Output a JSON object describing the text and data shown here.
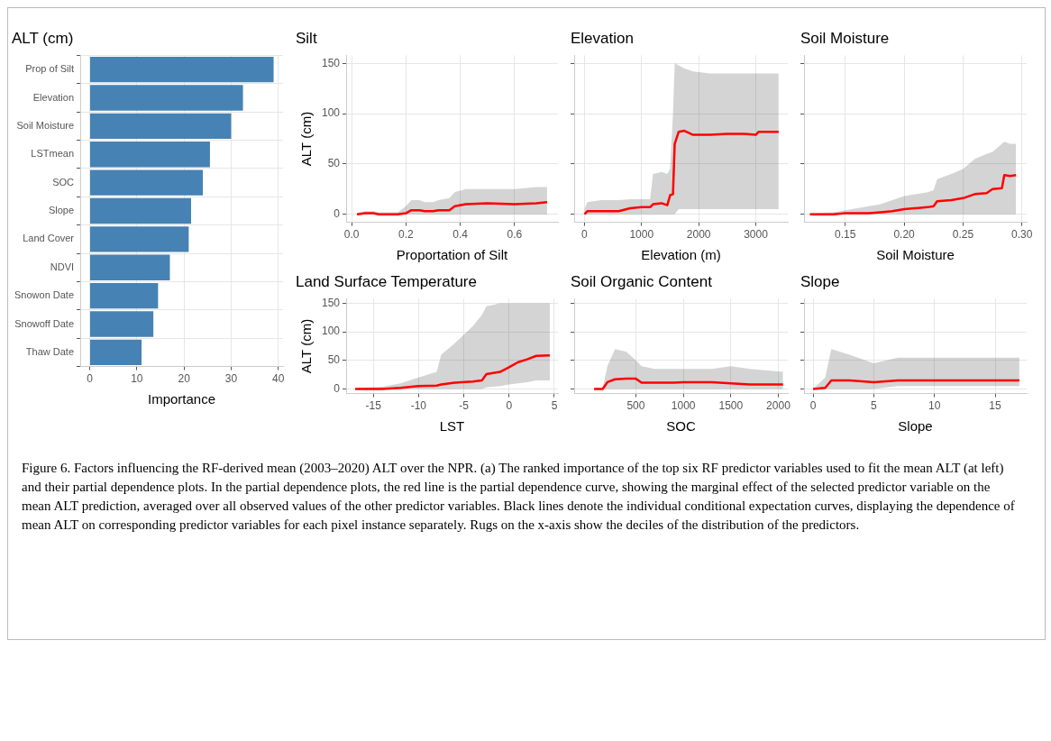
{
  "chart_data": [
    {
      "type": "bar",
      "orientation": "horizontal",
      "title": "ALT (cm)",
      "xlabel": "Importance",
      "categories": [
        "Prop of Silt",
        "Elevation",
        "Soil Moisture",
        "LSTmean",
        "SOC",
        "Slope",
        "Land Cover",
        "NDVI",
        "Snowon Date",
        "Snowoff Date",
        "Thaw Date"
      ],
      "values": [
        39,
        32.5,
        30,
        25.5,
        24,
        21.5,
        21,
        17,
        14.5,
        13.5,
        11
      ],
      "color": "#4682b4",
      "xlim": [
        -2,
        41
      ],
      "xticks": [
        0,
        10,
        20,
        30,
        40
      ],
      "grid": true,
      "legend": false,
      "annotations": [
        "Figure 6. Factors influencing the RF-derived mean (2003–2020) ALT over the NPR. (a) The ranked importance of the top six RF predictor variables used to fit the mean ALT (at left) and their partial dependence plots. In the partial dependence plots, the red line is the partial dependence curve, showing the marginal effect of the selected predictor variable on the mean ALT prediction, averaged over all observed values of the other predictor variables. Black lines denote the individual conditional expectation curves, displaying the dependence of mean ALT on corresponding predictor variables for each pixel instance separately. Rugs on the x-axis show the deciles of the distribution of the predictors."
      ]
    },
    {
      "type": "line",
      "title": "Silt",
      "xlabel": "Proportation of Silt",
      "ylabel": "ALT (cm)",
      "xlim": [
        -0.02,
        0.76
      ],
      "xticks": [
        {
          "value": 0,
          "label": "0.0"
        },
        {
          "value": 0.2,
          "label": "0.2"
        },
        {
          "value": 0.4,
          "label": "0.4"
        },
        {
          "value": 0.6,
          "label": "0.6"
        }
      ],
      "ylim": [
        -8,
        158
      ],
      "yticks": [
        0,
        50,
        100,
        150
      ],
      "grid": true,
      "legend": false,
      "series": [
        {
          "color": "#ff0000",
          "x": [
            0.02,
            0.05,
            0.08,
            0.1,
            0.17,
            0.2,
            0.22,
            0.25,
            0.27,
            0.3,
            0.32,
            0.36,
            0.38,
            0.42,
            0.5,
            0.6,
            0.68,
            0.72
          ],
          "values": [
            0,
            1,
            1,
            0,
            0,
            1,
            4,
            4,
            3,
            3,
            4,
            4,
            8,
            10,
            11,
            10,
            11,
            12
          ],
          "lower": [
            0,
            0,
            0,
            0,
            0,
            0,
            0,
            0,
            0,
            0,
            0,
            0,
            0,
            0,
            0,
            0,
            0,
            0
          ],
          "upper": [
            1,
            3,
            3,
            2,
            2,
            8,
            14,
            14,
            12,
            12,
            14,
            16,
            22,
            25,
            25,
            25,
            27,
            27
          ]
        }
      ]
    },
    {
      "type": "line",
      "title": "Elevation",
      "xlabel": "Elevation (m)",
      "xlim": [
        -180,
        3560
      ],
      "xticks": [
        0,
        1000,
        2000,
        3000
      ],
      "ylim": [
        -8,
        158
      ],
      "yticks": [
        0,
        50,
        100,
        150
      ],
      "tick_labels": "x",
      "grid": true,
      "legend": false,
      "series": [
        {
          "color": "#ff0000",
          "x": [
            0,
            50,
            300,
            600,
            800,
            1000,
            1150,
            1200,
            1350,
            1450,
            1500,
            1550,
            1580,
            1650,
            1750,
            1900,
            2200,
            2500,
            2800,
            3000,
            3050,
            3400
          ],
          "values": [
            0,
            3,
            3,
            3,
            6,
            7,
            7,
            10,
            11,
            9,
            19,
            20,
            70,
            82,
            83,
            79,
            79,
            80,
            80,
            79,
            82,
            82
          ],
          "lower": [
            0,
            0,
            0,
            0,
            0,
            0,
            0,
            0,
            0,
            0,
            0,
            0,
            0,
            5,
            5,
            5,
            5,
            5,
            5,
            5,
            5,
            5
          ],
          "upper": [
            5,
            12,
            14,
            14,
            15,
            15,
            15,
            40,
            42,
            40,
            45,
            100,
            150,
            148,
            145,
            142,
            140,
            140,
            140,
            140,
            140,
            140
          ]
        }
      ]
    },
    {
      "type": "line",
      "title": "Soil Moisture",
      "xlabel": "Soil Moisture",
      "xlim": [
        0.115,
        0.304
      ],
      "xticks": [
        {
          "value": 0.15,
          "label": "0.15"
        },
        {
          "value": 0.2,
          "label": "0.20"
        },
        {
          "value": 0.25,
          "label": "0.25"
        },
        {
          "value": 0.3,
          "label": "0.30"
        }
      ],
      "ylim": [
        -8,
        158
      ],
      "yticks": [
        0,
        50,
        100,
        150
      ],
      "tick_labels": "x",
      "grid": true,
      "legend": false,
      "series": [
        {
          "color": "#ff0000",
          "x": [
            0.12,
            0.14,
            0.15,
            0.17,
            0.18,
            0.19,
            0.2,
            0.22,
            0.225,
            0.228,
            0.24,
            0.25,
            0.26,
            0.27,
            0.275,
            0.283,
            0.285,
            0.29,
            0.295
          ],
          "values": [
            0,
            0,
            1,
            1,
            2,
            3,
            5,
            7,
            8,
            13,
            14,
            16,
            20,
            21,
            25,
            26,
            39,
            38,
            39
          ],
          "lower": [
            0,
            0,
            0,
            0,
            0,
            0,
            0,
            0,
            0,
            0,
            0,
            0,
            0,
            0,
            0,
            0,
            0,
            0,
            0
          ],
          "upper": [
            1,
            2,
            4,
            8,
            10,
            14,
            18,
            22,
            24,
            35,
            40,
            45,
            55,
            60,
            62,
            70,
            72,
            70,
            70
          ]
        }
      ]
    },
    {
      "type": "line",
      "title": "Land Surface Temperature",
      "xlabel": "LST",
      "ylabel": "ALT (cm)",
      "xlim": [
        -18,
        5.4
      ],
      "xticks": [
        -15,
        -10,
        -5,
        0,
        5
      ],
      "ylim": [
        -8,
        158
      ],
      "yticks": [
        0,
        50,
        100,
        150
      ],
      "grid": true,
      "legend": false,
      "series": [
        {
          "color": "#ff0000",
          "x": [
            -17,
            -14,
            -12,
            -10,
            -8,
            -7.5,
            -6,
            -4,
            -3,
            -2.5,
            -1,
            0,
            1,
            2,
            3,
            4.5
          ],
          "values": [
            0,
            0,
            2,
            5,
            6,
            8,
            11,
            13,
            15,
            26,
            30,
            38,
            47,
            52,
            58,
            59
          ],
          "lower": [
            0,
            0,
            0,
            0,
            0,
            0,
            0,
            0,
            0,
            3,
            5,
            8,
            10,
            12,
            15,
            15
          ],
          "upper": [
            2,
            4,
            10,
            20,
            30,
            60,
            80,
            110,
            130,
            145,
            150,
            150,
            150,
            150,
            150,
            150
          ]
        }
      ]
    },
    {
      "type": "line",
      "title": "Soil Organic Content",
      "xlabel": "SOC",
      "xlim": [
        -150,
        2100
      ],
      "xticks": [
        500,
        1000,
        1500,
        2000
      ],
      "ylim": [
        -8,
        158
      ],
      "yticks": [
        0,
        50,
        100,
        150
      ],
      "tick_labels": "x",
      "grid": true,
      "legend": false,
      "series": [
        {
          "color": "#ff0000",
          "x": [
            60,
            150,
            200,
            280,
            400,
            500,
            560,
            700,
            900,
            1000,
            1300,
            1500,
            1700,
            2050
          ],
          "values": [
            0,
            0,
            12,
            17,
            18,
            18,
            11,
            11,
            11,
            12,
            12,
            10,
            8,
            8
          ],
          "lower": [
            0,
            0,
            0,
            0,
            0,
            0,
            0,
            0,
            0,
            0,
            0,
            0,
            0,
            0
          ],
          "upper": [
            2,
            2,
            40,
            70,
            65,
            50,
            40,
            35,
            35,
            35,
            35,
            40,
            35,
            30
          ]
        }
      ]
    },
    {
      "type": "line",
      "title": "Slope",
      "xlabel": "Slope",
      "xlim": [
        -0.75,
        17.6
      ],
      "xticks": [
        0,
        5,
        10,
        15
      ],
      "ylim": [
        -8,
        158
      ],
      "yticks": [
        0,
        50,
        100,
        150
      ],
      "tick_labels": "x",
      "grid": true,
      "legend": false,
      "series": [
        {
          "color": "#ff0000",
          "x": [
            0,
            1,
            1.5,
            3,
            5,
            7,
            17
          ],
          "values": [
            0,
            2,
            15,
            15,
            12,
            15,
            15
          ],
          "lower": [
            0,
            0,
            0,
            0,
            0,
            5,
            5
          ],
          "upper": [
            0,
            20,
            70,
            60,
            45,
            55,
            55
          ]
        }
      ]
    }
  ]
}
